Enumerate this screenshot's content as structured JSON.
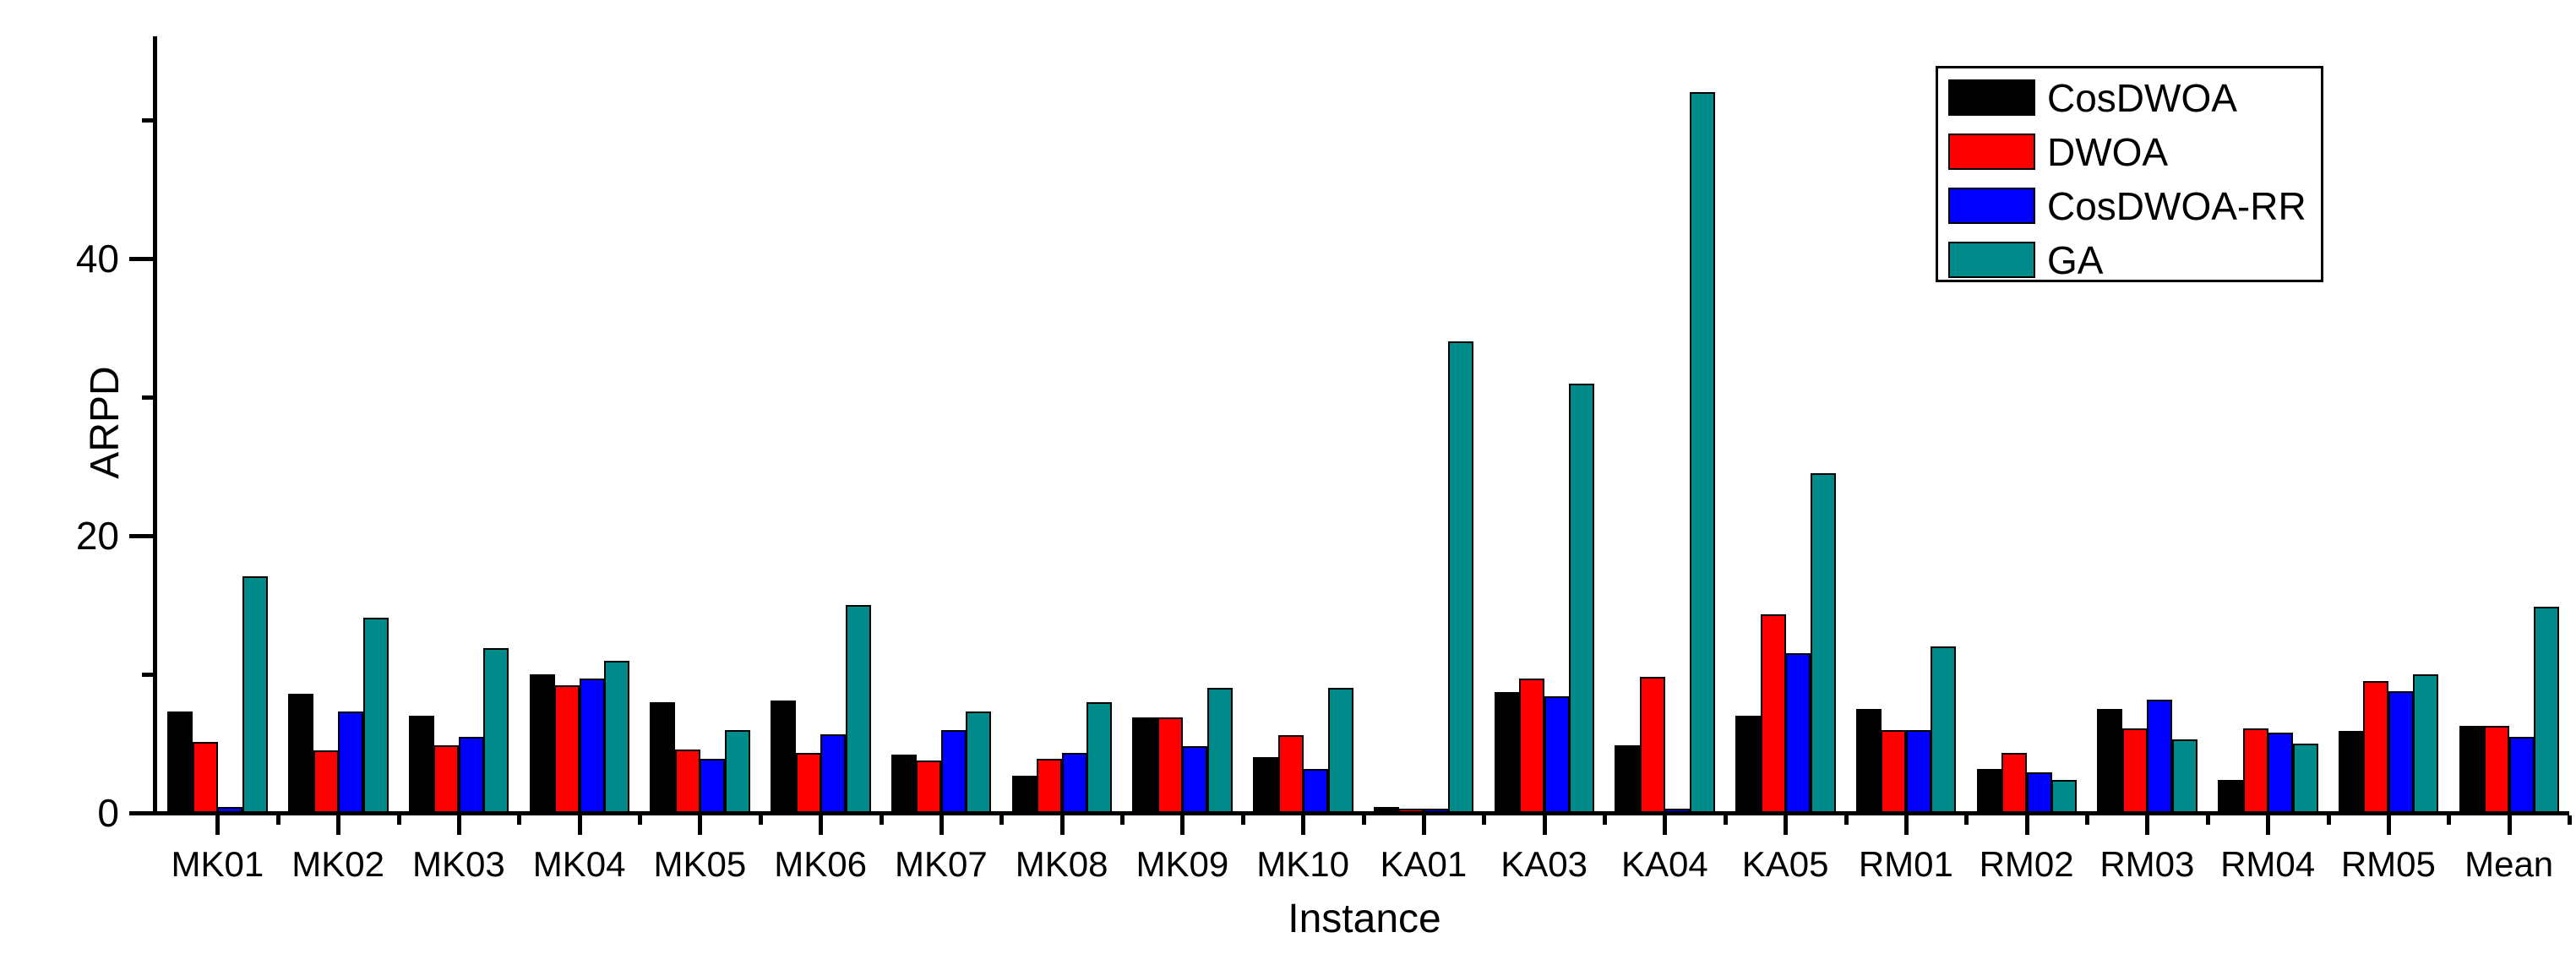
{
  "chart_data": {
    "type": "bar",
    "title": "",
    "xlabel": "Instance",
    "ylabel": "ARPD",
    "categories": [
      "MK01",
      "MK02",
      "MK03",
      "MK04",
      "MK05",
      "MK06",
      "MK07",
      "MK08",
      "MK09",
      "MK10",
      "KA01",
      "KA03",
      "KA04",
      "KA05",
      "RM01",
      "RM02",
      "RM03",
      "RM04",
      "RM05",
      "Mean"
    ],
    "series": [
      {
        "name": "CosDWOA",
        "color": "#000000",
        "values": [
          7.3,
          8.6,
          7.0,
          10.0,
          8.0,
          8.1,
          4.2,
          2.7,
          6.9,
          4.0,
          0.4,
          8.7,
          4.9,
          7.0,
          7.5,
          3.2,
          7.5,
          2.4,
          5.9,
          6.3
        ]
      },
      {
        "name": "DWOA",
        "color": "#ff0000",
        "values": [
          5.1,
          4.5,
          4.9,
          9.2,
          4.6,
          4.3,
          3.8,
          3.9,
          6.9,
          5.6,
          0.3,
          9.7,
          9.8,
          14.3,
          6.0,
          4.3,
          6.1,
          6.1,
          9.5,
          6.3
        ]
      },
      {
        "name": "CosDWOA-RR",
        "color": "#0000ff",
        "values": [
          0.4,
          7.3,
          5.5,
          9.7,
          3.9,
          5.7,
          6.0,
          4.3,
          4.8,
          3.2,
          0.3,
          8.4,
          0.3,
          11.5,
          6.0,
          2.9,
          8.2,
          5.8,
          8.8,
          5.5
        ]
      },
      {
        "name": "GA",
        "color": "#008b8b",
        "values": [
          17.1,
          14.1,
          11.9,
          11.0,
          6.0,
          15.0,
          7.3,
          8.0,
          9.0,
          9.0,
          34.0,
          31.0,
          52.0,
          24.5,
          12.0,
          2.4,
          5.3,
          5.0,
          10.0,
          14.9
        ]
      }
    ],
    "y_ticks_major": [
      0,
      20,
      40
    ],
    "y_ticks_minor": [
      10,
      30,
      50
    ],
    "y_tick_labels": [
      "0",
      "20",
      "40"
    ],
    "ylim": [
      0,
      56
    ],
    "grid": false,
    "legend_position": "top-right",
    "bar_outline_color": "#000000",
    "axis_color": "#000000"
  }
}
